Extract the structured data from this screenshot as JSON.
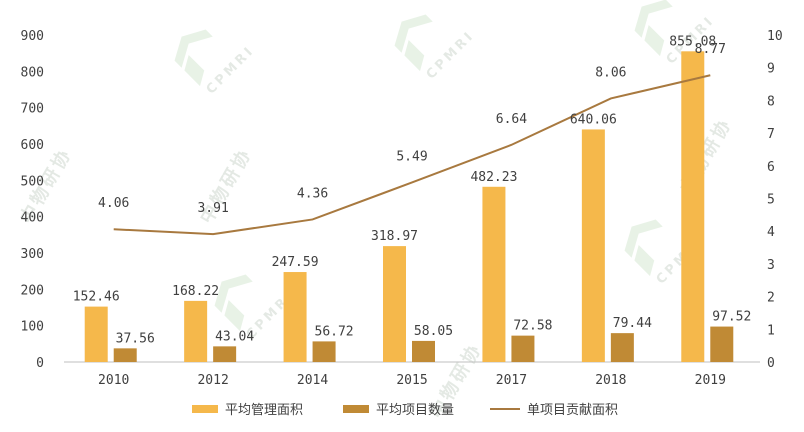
{
  "chart_data": {
    "type": "bar",
    "categories": [
      "2010",
      "2012",
      "2014",
      "2015",
      "2017",
      "2018",
      "2019"
    ],
    "series": [
      {
        "name": "平均管理面积",
        "kind": "bar",
        "axis": "left",
        "color": "#F5B84B",
        "values": [
          152.46,
          168.22,
          247.59,
          318.97,
          482.23,
          640.06,
          855.08
        ],
        "labels": [
          "152.46",
          "168.22",
          "247.59",
          "318.97",
          "482.23",
          "640.06",
          "855.08"
        ]
      },
      {
        "name": "平均项目数量",
        "kind": "bar",
        "axis": "left",
        "color": "#C08A35",
        "values": [
          37.56,
          43.04,
          56.72,
          58.05,
          72.58,
          79.44,
          97.52
        ],
        "labels": [
          "37.56",
          "43.04",
          "56.72",
          "58.05",
          "72.58",
          "79.44",
          "97.52"
        ]
      },
      {
        "name": "单项目贡献面积",
        "kind": "line",
        "axis": "right",
        "color": "#A8793F",
        "values": [
          4.06,
          3.91,
          4.36,
          5.49,
          6.64,
          8.06,
          8.77
        ],
        "labels": [
          "4.06",
          "3.91",
          "4.36",
          "5.49",
          "6.64",
          "8.06",
          "8.77"
        ]
      }
    ],
    "y_left": {
      "min": 0,
      "max": 900,
      "ticks": [
        "0",
        "100",
        "200",
        "300",
        "400",
        "500",
        "600",
        "700",
        "800",
        "900"
      ]
    },
    "y_right": {
      "min": 0,
      "max": 10,
      "ticks": [
        "0",
        "1",
        "2",
        "3",
        "4",
        "5",
        "6",
        "7",
        "8",
        "9",
        "10"
      ]
    },
    "title": "",
    "xlabel": "",
    "ylabel": "",
    "grid": false,
    "legend": "bottom"
  },
  "watermark": {
    "text": "CPMRI",
    "cn_text": "中物研协"
  }
}
